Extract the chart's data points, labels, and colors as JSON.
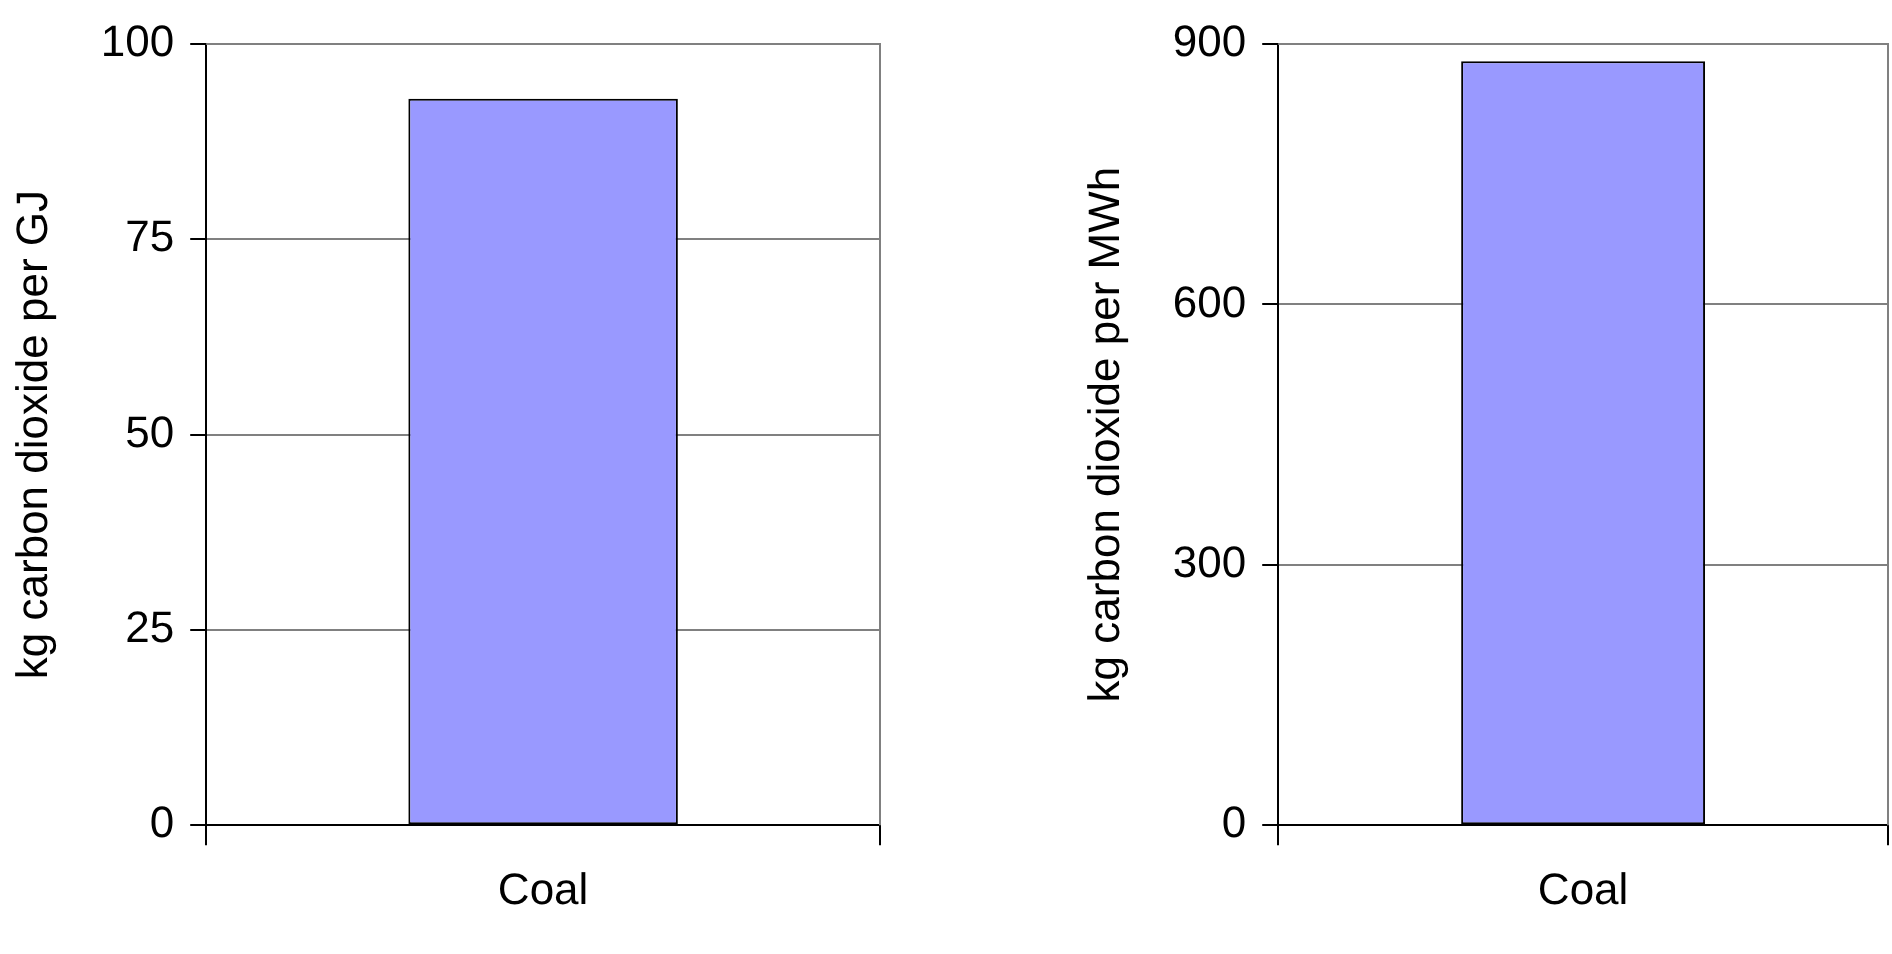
{
  "chart_data": [
    {
      "type": "bar",
      "categories": [
        "Coal"
      ],
      "values": [
        93
      ],
      "color": "#9999ff",
      "ylabel": "kg carbon dioxide per GJ",
      "ylim": [
        0,
        100
      ],
      "yticks": [
        0,
        25,
        50,
        75,
        100
      ],
      "grid": "y",
      "legend": false
    },
    {
      "type": "bar",
      "categories": [
        "Coal"
      ],
      "values": [
        880
      ],
      "color": "#9999ff",
      "ylabel": "kg carbon dioxide per MWh",
      "ylim": [
        0,
        900
      ],
      "yticks": [
        0,
        300,
        600,
        900
      ],
      "grid": "y",
      "legend": false
    }
  ]
}
